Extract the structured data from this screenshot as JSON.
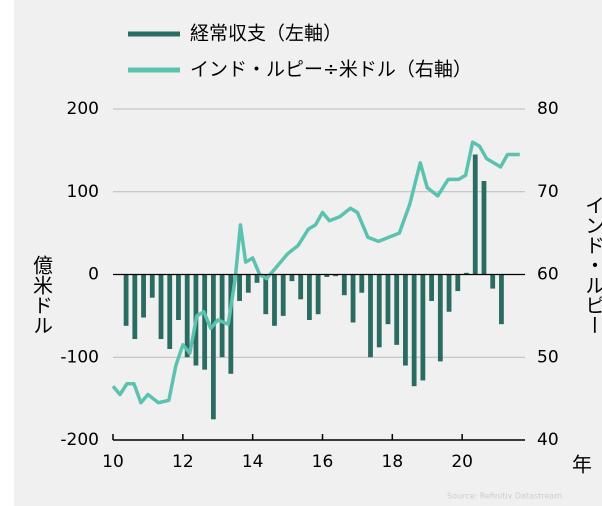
{
  "chart_data": {
    "type": "bar-line",
    "ylabel": "億米ドル",
    "y2label": "インド・ルピー",
    "xlabel": "年",
    "source": "Source: Refinitiv Datastream",
    "xlim": [
      10,
      21.8
    ],
    "xticks": [
      10,
      12,
      14,
      16,
      18,
      20
    ],
    "ylim": [
      -200,
      200
    ],
    "yticks": [
      -200,
      -100,
      0,
      100,
      200
    ],
    "y2lim": [
      40,
      80
    ],
    "y2ticks": [
      40,
      50,
      60,
      70,
      80
    ],
    "grid": true,
    "series": [
      {
        "name": "経常収支（左軸）",
        "type": "bar",
        "color": "#2a6b62",
        "x": [
          10.375,
          10.625,
          10.875,
          11.125,
          11.375,
          11.625,
          11.875,
          12.125,
          12.375,
          12.625,
          12.875,
          13.125,
          13.375,
          13.625,
          13.875,
          14.125,
          14.375,
          14.625,
          14.875,
          15.125,
          15.375,
          15.625,
          15.875,
          16.125,
          16.375,
          16.625,
          16.875,
          17.125,
          17.375,
          17.625,
          17.875,
          18.125,
          18.375,
          18.625,
          18.875,
          19.125,
          19.375,
          19.625,
          19.875,
          20.125,
          20.375,
          20.625,
          20.875,
          21.125
        ],
        "values": [
          -62,
          -78,
          -52,
          -28,
          -78,
          -90,
          -55,
          -100,
          -110,
          -115,
          -175,
          -100,
          -120,
          -32,
          -22,
          -10,
          -48,
          -62,
          -50,
          -8,
          -30,
          -55,
          -48,
          -3,
          -2,
          -25,
          -58,
          -22,
          -100,
          -88,
          -60,
          -85,
          -110,
          -135,
          -128,
          -32,
          -105,
          -45,
          -20,
          2,
          145,
          113,
          -17,
          -60
        ]
      },
      {
        "name": "インド・ルピー÷米ドル（右軸）",
        "type": "line",
        "axis": "y2",
        "color": "#5cc2b0",
        "x": [
          10.0,
          10.2,
          10.4,
          10.6,
          10.8,
          11.0,
          11.3,
          11.6,
          11.8,
          12.0,
          12.2,
          12.4,
          12.6,
          12.8,
          13.0,
          13.3,
          13.5,
          13.65,
          13.8,
          14.0,
          14.2,
          14.4,
          14.6,
          14.8,
          15.0,
          15.3,
          15.6,
          15.8,
          16.0,
          16.2,
          16.5,
          16.8,
          17.0,
          17.3,
          17.6,
          17.9,
          18.2,
          18.5,
          18.8,
          19.0,
          19.3,
          19.6,
          19.9,
          20.1,
          20.3,
          20.5,
          20.7,
          20.9,
          21.1,
          21.3,
          21.5,
          21.65
        ],
        "values": [
          46.5,
          45.5,
          46.8,
          46.8,
          44.5,
          45.5,
          44.5,
          44.8,
          49,
          51.5,
          50.5,
          55,
          55.5,
          53.5,
          54.5,
          54,
          59.5,
          66,
          61.5,
          62,
          60,
          59.5,
          60.5,
          61.5,
          62.5,
          63.5,
          65.5,
          66,
          67.5,
          66.5,
          67,
          68,
          67.5,
          64.5,
          64,
          64.5,
          65,
          68.5,
          73.5,
          70.5,
          69.5,
          71.5,
          71.5,
          72,
          76,
          75.5,
          74,
          73.5,
          73,
          74.5,
          74.5,
          74.5
        ]
      }
    ]
  }
}
